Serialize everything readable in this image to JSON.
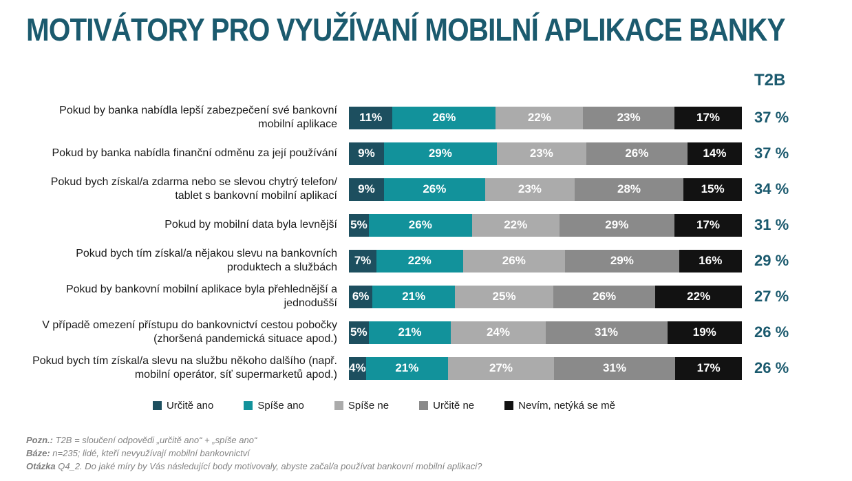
{
  "title": "MOTIVÁTORY PRO VYUŽÍVANÍ MOBILNÍ APLIKACE BANKY",
  "t2b_header": "T2B",
  "colors": {
    "title": "#1b5a6e",
    "t2b_text": "#1b5a6e",
    "footnote_gray": "#828282"
  },
  "chart_data": {
    "type": "bar",
    "variant": "horizontal-stacked",
    "stacked": true,
    "value_unit": "%",
    "xlim": [
      0,
      100
    ],
    "grid": false,
    "legend_position": "bottom",
    "legend": [
      {
        "label": "Určitě ano",
        "color": "#1d4f5f"
      },
      {
        "label": "Spíše ano",
        "color": "#12929b"
      },
      {
        "label": "Spíše ne",
        "color": "#ababab"
      },
      {
        "label": "Určitě ne",
        "color": "#8a8a8a"
      },
      {
        "label": "Nevím, netýká se mě",
        "color": "#121212"
      }
    ],
    "categories": [
      "Pokud by banka nabídla lepší zabezpečení své bankovní mobilní aplikace",
      "Pokud by banka nabídla finanční odměnu za její používání",
      "Pokud bych získal/a zdarma nebo se slevou chytrý telefon/ tablet s bankovní mobilní aplikací",
      "Pokud by mobilní data byla levnější",
      "Pokud bych tím získal/a nějakou slevu na bankovních produktech a službách",
      "Pokud by bankovní mobilní aplikace byla přehlednější a jednodušší",
      "V případě omezení přístupu do bankovnictví cestou pobočky (zhoršená pandemická situace apod.)",
      "Pokud bych tím získal/a slevu na službu někoho dalšího (např. mobilní operátor, síť supermarketů apod.)"
    ],
    "rows": [
      {
        "label": "Pokud by banka nabídla lepší zabezpečení své bankovní mobilní aplikace",
        "values": [
          11,
          26,
          22,
          23,
          17
        ],
        "value_labels": [
          "11%",
          "26%",
          "22%",
          "23%",
          "17%"
        ],
        "t2b": "37 %"
      },
      {
        "label": "Pokud by banka nabídla finanční odměnu za její používání",
        "values": [
          9,
          29,
          23,
          26,
          14
        ],
        "value_labels": [
          "9%",
          "29%",
          "23%",
          "26%",
          "14%"
        ],
        "t2b": "37 %"
      },
      {
        "label": "Pokud bych získal/a zdarma nebo se slevou chytrý telefon/ tablet s bankovní mobilní aplikací",
        "values": [
          9,
          26,
          23,
          28,
          15
        ],
        "value_labels": [
          "9%",
          "26%",
          "23%",
          "28%",
          "15%"
        ],
        "t2b": "34 %"
      },
      {
        "label": "Pokud by mobilní data byla levnější",
        "values": [
          5,
          26,
          22,
          29,
          17
        ],
        "value_labels": [
          "5%",
          "26%",
          "22%",
          "29%",
          "17%"
        ],
        "t2b": "31 %"
      },
      {
        "label": "Pokud bych tím získal/a nějakou slevu na bankovních produktech a službách",
        "values": [
          7,
          22,
          26,
          29,
          16
        ],
        "value_labels": [
          "7%",
          "22%",
          "26%",
          "29%",
          "16%"
        ],
        "t2b": "29 %"
      },
      {
        "label": "Pokud by bankovní mobilní aplikace byla přehlednější a jednodušší",
        "values": [
          6,
          21,
          25,
          26,
          22
        ],
        "value_labels": [
          "6%",
          "21%",
          "25%",
          "26%",
          "22%"
        ],
        "t2b": "27 %"
      },
      {
        "label": "V případě omezení přístupu do bankovnictví cestou pobočky (zhoršená pandemická situace apod.)",
        "values": [
          5,
          21,
          24,
          31,
          19
        ],
        "value_labels": [
          "5%",
          "21%",
          "24%",
          "31%",
          "19%"
        ],
        "t2b": "26 %"
      },
      {
        "label": "Pokud bych tím získal/a slevu na službu někoho dalšího (např. mobilní operátor, síť supermarketů apod.)",
        "values": [
          4,
          21,
          27,
          31,
          17
        ],
        "value_labels": [
          "4%",
          "21%",
          "27%",
          "31%",
          "17%"
        ],
        "t2b": "26 %"
      }
    ]
  },
  "footnotes": [
    {
      "bold": "Pozn.:",
      "text": " T2B = sloučení odpovědi „určitě ano“ + „spíše ano“"
    },
    {
      "bold": "Báze:",
      "text": " n=235; lidé, kteří nevyužívají mobilní bankovnictví"
    },
    {
      "bold": "Otázka",
      "text": " Q4_2. Do jaké míry by Vás následující body motivovaly, abyste začal/a používat bankovní mobilní aplikaci?"
    }
  ]
}
